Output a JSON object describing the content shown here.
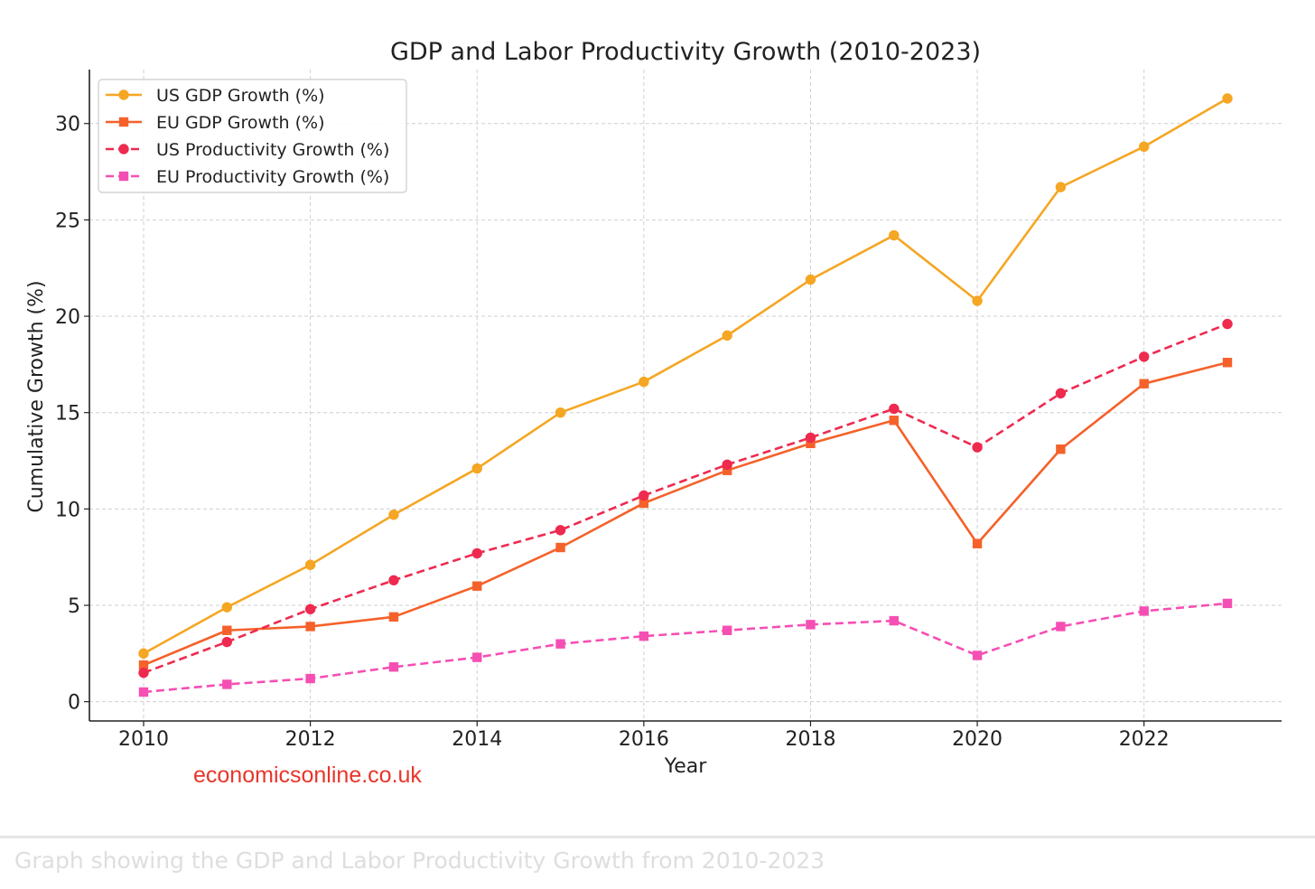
{
  "caption": "Graph showing the GDP and Labor Productivity Growth from 2010-2023",
  "watermark": {
    "text": "economicsonline.co.uk",
    "color": "#e8352a"
  },
  "chart_data": {
    "type": "line",
    "title": "GDP and Labor Productivity Growth (2010-2023)",
    "xlabel": "Year",
    "ylabel": "Cumulative Growth (%)",
    "x": [
      2010,
      2011,
      2012,
      2013,
      2014,
      2015,
      2016,
      2017,
      2018,
      2019,
      2020,
      2021,
      2022,
      2023
    ],
    "x_ticks": [
      "2010",
      "2012",
      "2014",
      "2016",
      "2018",
      "2020",
      "2022"
    ],
    "y_ticks": [
      "0",
      "5",
      "10",
      "15",
      "20",
      "25",
      "30"
    ],
    "xlim": [
      2009.35,
      2023.65
    ],
    "ylim": [
      -1.0,
      32.8
    ],
    "grid": true,
    "legend_position": "upper-left",
    "series": [
      {
        "name": "US GDP Growth (%)",
        "color": "#f5a623",
        "linestyle": "solid",
        "marker": "circle",
        "values": [
          2.5,
          4.9,
          7.1,
          9.7,
          12.1,
          15.0,
          16.6,
          19.0,
          21.9,
          24.2,
          20.8,
          26.7,
          28.8,
          31.3
        ]
      },
      {
        "name": "EU GDP Growth (%)",
        "color": "#f5612a",
        "linestyle": "solid",
        "marker": "square",
        "values": [
          1.9,
          3.7,
          3.9,
          4.4,
          6.0,
          8.0,
          10.3,
          12.0,
          13.4,
          14.6,
          8.2,
          13.1,
          16.5,
          17.6
        ]
      },
      {
        "name": "US Productivity Growth (%)",
        "color": "#ee2a4f",
        "linestyle": "dashed",
        "marker": "circle",
        "values": [
          1.5,
          3.1,
          4.8,
          6.3,
          7.7,
          8.9,
          10.7,
          12.3,
          13.7,
          15.2,
          13.2,
          16.0,
          17.9,
          19.6
        ]
      },
      {
        "name": "EU Productivity Growth (%)",
        "color": "#f54fb4",
        "linestyle": "dashed",
        "marker": "square",
        "values": [
          0.5,
          0.9,
          1.2,
          1.8,
          2.3,
          3.0,
          3.4,
          3.7,
          4.0,
          4.2,
          2.4,
          3.9,
          4.7,
          5.1
        ]
      }
    ]
  }
}
